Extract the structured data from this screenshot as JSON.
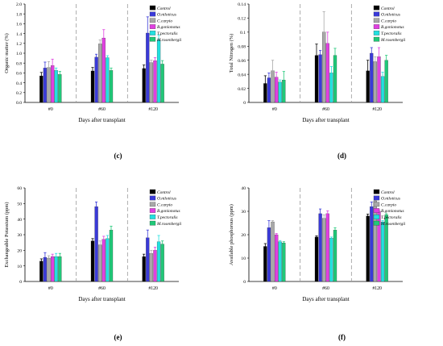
{
  "legend_colors": [
    "#000000",
    "#3a3ad8",
    "#a8a8a8",
    "#e040e0",
    "#22e0e0",
    "#20c878"
  ],
  "chart_data": [
    {
      "type": "bar",
      "panel": "(c)",
      "ylabel": "Organic matter (%)",
      "xlabel": "Days after transplant",
      "categories": [
        "#0",
        "#60",
        "#120"
      ],
      "ylim": [
        0,
        2.0
      ],
      "yticks": [
        "0.0",
        "0.2",
        "0.4",
        "0.6",
        "0.8",
        "1.0",
        "1.2",
        "1.4",
        "1.6",
        "1.8",
        "2.0"
      ],
      "legend_position": "top-right",
      "series": [
        {
          "name": "Control",
          "values": [
            0.54,
            0.64,
            0.69
          ],
          "errors": [
            0.07,
            0.07,
            0.07
          ]
        },
        {
          "name": "O.niloticus",
          "values": [
            0.7,
            0.92,
            1.41
          ],
          "errors": [
            0.12,
            0.06,
            0.33
          ]
        },
        {
          "name": "C.carpio",
          "values": [
            0.71,
            1.19,
            0.81
          ],
          "errors": [
            0.12,
            0.08,
            0.05
          ]
        },
        {
          "name": "B.gonionotus",
          "values": [
            0.75,
            1.31,
            0.85
          ],
          "errors": [
            0.13,
            0.17,
            0.06
          ]
        },
        {
          "name": "T.pectoralis",
          "values": [
            0.65,
            0.91,
            1.27
          ],
          "errors": [
            0.05,
            0.04,
            0.1
          ]
        },
        {
          "name": "M.rosenbergii",
          "values": [
            0.57,
            0.65,
            0.78
          ],
          "errors": [
            0.06,
            0.05,
            0.07
          ]
        }
      ]
    },
    {
      "type": "bar",
      "panel": "(d)",
      "ylabel": "Total Nitrogen (%)",
      "xlabel": "Days after transplant",
      "categories": [
        "#0",
        "#60",
        "#120"
      ],
      "ylim": [
        0,
        0.14
      ],
      "yticks": [
        "0",
        "0.02",
        "0.04",
        "0.06",
        "0.08",
        "0.1",
        "0.12",
        "0.14"
      ],
      "legend_position": "top-right",
      "series": [
        {
          "name": "Control",
          "values": [
            0.027,
            0.067,
            0.045
          ],
          "errors": [
            0.011,
            0.016,
            0.015
          ]
        },
        {
          "name": "O.niloticus",
          "values": [
            0.035,
            0.068,
            0.07
          ],
          "errors": [
            0.007,
            0.006,
            0.008
          ]
        },
        {
          "name": "C.carpio",
          "values": [
            0.045,
            0.1,
            0.058
          ],
          "errors": [
            0.015,
            0.029,
            0.007
          ]
        },
        {
          "name": "B.gonionotus",
          "values": [
            0.036,
            0.084,
            0.065
          ],
          "errors": [
            0.007,
            0.016,
            0.013
          ]
        },
        {
          "name": "T.pectoralis",
          "values": [
            0.029,
            0.042,
            0.037
          ],
          "errors": [
            0.003,
            0.009,
            0.006
          ]
        },
        {
          "name": "M.rosenbergii",
          "values": [
            0.032,
            0.067,
            0.06
          ],
          "errors": [
            0.012,
            0.01,
            0.007
          ]
        }
      ]
    },
    {
      "type": "bar",
      "panel": "(e)",
      "ylabel": "Exchangeable Potassium (ppm)",
      "xlabel": "Days after transplant",
      "categories": [
        "#0",
        "#60",
        "#120"
      ],
      "ylim": [
        0,
        60
      ],
      "yticks": [
        "0",
        "10",
        "20",
        "30",
        "40",
        "50",
        "60"
      ],
      "legend_position": "top-right",
      "series": [
        {
          "name": "Control",
          "values": [
            13.0,
            26.0,
            16.0
          ],
          "errors": [
            1.5,
            1.5,
            1.5
          ]
        },
        {
          "name": "O.niloticus",
          "values": [
            15.5,
            48.0,
            28.0
          ],
          "errors": [
            3.0,
            3.0,
            5.0
          ]
        },
        {
          "name": "C.carpio",
          "values": [
            15.0,
            23.5,
            18.0
          ],
          "errors": [
            1.5,
            2.5,
            2.0
          ]
        },
        {
          "name": "B.gonionotus",
          "values": [
            16.0,
            27.0,
            20.0
          ],
          "errors": [
            1.5,
            2.0,
            2.0
          ]
        },
        {
          "name": "T.pectoralis",
          "values": [
            16.0,
            27.5,
            25.5
          ],
          "errors": [
            2.0,
            2.0,
            4.0
          ]
        },
        {
          "name": "M.rosenbergii",
          "values": [
            16.0,
            33.0,
            24.0
          ],
          "errors": [
            2.0,
            2.5,
            2.0
          ]
        }
      ]
    },
    {
      "type": "bar",
      "panel": "(f)",
      "ylabel": "Available phosphorous (ppm)",
      "xlabel": "Days after transplant",
      "categories": [
        "#0",
        "#60",
        "#120"
      ],
      "ylim": [
        0,
        40
      ],
      "yticks": [
        "0",
        "10",
        "20",
        "30",
        "40"
      ],
      "legend_position": "top-right",
      "series": [
        {
          "name": "Control",
          "values": [
            15.0,
            19.0,
            28.0
          ],
          "errors": [
            1.2,
            0.5,
            0.8
          ]
        },
        {
          "name": "O.niloticus",
          "values": [
            23.0,
            29.0,
            32.0
          ],
          "errors": [
            3.0,
            2.0,
            2.0
          ]
        },
        {
          "name": "C.carpio",
          "values": [
            25.5,
            27.0,
            34.5
          ],
          "errors": [
            0.5,
            1.5,
            0.5
          ]
        },
        {
          "name": "B.gonionotus",
          "values": [
            20.0,
            29.0,
            30.0
          ],
          "errors": [
            0.5,
            1.2,
            0.5
          ]
        },
        {
          "name": "T.pectoralis",
          "values": [
            17.0,
            18.5,
            25.5
          ],
          "errors": [
            0.5,
            0.5,
            0.5
          ]
        },
        {
          "name": "M.rosenbergii",
          "values": [
            16.5,
            22.0,
            28.5
          ],
          "errors": [
            0.5,
            1.0,
            0.5
          ]
        }
      ]
    }
  ]
}
